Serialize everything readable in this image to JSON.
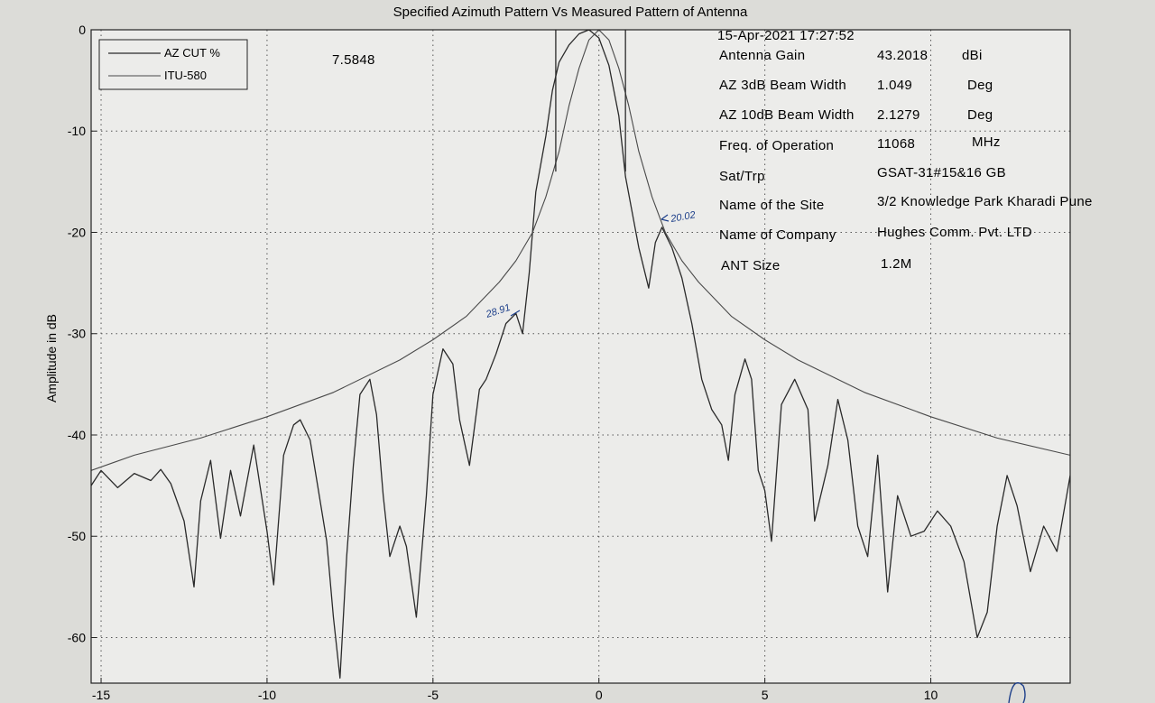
{
  "chart_data": {
    "type": "line",
    "title": "Specified  Azimuth Pattern  Vs Measured Pattern of  Antenna",
    "xlabel": "",
    "ylabel": "Amplitude in dB",
    "xlim": [
      -15.3,
      14.2
    ],
    "ylim": [
      -64.5,
      0
    ],
    "grid": true,
    "legend_position": "top-left",
    "x_ticks": [
      -15,
      -10,
      -5,
      0,
      5,
      10
    ],
    "y_ticks": [
      0,
      -10,
      -20,
      -30,
      -40,
      -50,
      -60
    ],
    "x_tick_labels": [
      "-15",
      "-10",
      "-5",
      "0",
      "5",
      "10"
    ],
    "y_tick_labels": [
      "0",
      "-10",
      "-20",
      "-30",
      "-40",
      "-50",
      "-60"
    ],
    "series": [
      {
        "name": "AZ CUT %",
        "color": "#2a2a2a",
        "x": [
          -15.3,
          -15.0,
          -14.5,
          -14.0,
          -13.5,
          -13.2,
          -12.9,
          -12.5,
          -12.2,
          -12.0,
          -11.7,
          -11.4,
          -11.1,
          -10.8,
          -10.4,
          -10.0,
          -9.8,
          -9.5,
          -9.2,
          -9.0,
          -8.7,
          -8.5,
          -8.2,
          -8.0,
          -7.8,
          -7.6,
          -7.4,
          -7.2,
          -6.9,
          -6.7,
          -6.5,
          -6.3,
          -6.0,
          -5.8,
          -5.5,
          -5.2,
          -5.0,
          -4.7,
          -4.4,
          -4.2,
          -3.9,
          -3.6,
          -3.4,
          -3.1,
          -2.8,
          -2.5,
          -2.3,
          -2.1,
          -1.9,
          -1.6,
          -1.4,
          -1.2,
          -0.9,
          -0.6,
          -0.3,
          0.0,
          0.3,
          0.6,
          0.8,
          1.2,
          1.5,
          1.7,
          1.9,
          2.2,
          2.5,
          2.8,
          3.1,
          3.4,
          3.7,
          3.9,
          4.1,
          4.4,
          4.6,
          4.8,
          5.0,
          5.2,
          5.5,
          5.9,
          6.3,
          6.5,
          6.9,
          7.2,
          7.5,
          7.8,
          8.1,
          8.4,
          8.7,
          9.0,
          9.4,
          9.8,
          10.2,
          10.6,
          11.0,
          11.4,
          11.7,
          12.0,
          12.3,
          12.6,
          13.0,
          13.4,
          13.8,
          14.2
        ],
        "y": [
          -45.0,
          -43.5,
          -45.2,
          -43.8,
          -44.5,
          -43.4,
          -44.8,
          -48.5,
          -55.0,
          -46.5,
          -42.5,
          -50.2,
          -43.5,
          -48.0,
          -41.0,
          -49.5,
          -54.8,
          -42.0,
          -39.0,
          -38.5,
          -40.5,
          -44.5,
          -50.5,
          -58.0,
          -64.0,
          -52.0,
          -43.0,
          -36.0,
          -34.5,
          -38.0,
          -46.0,
          -52.0,
          -49.0,
          -51.0,
          -58.0,
          -46.0,
          -36.0,
          -31.5,
          -33.0,
          -38.5,
          -43.0,
          -35.5,
          -34.5,
          -32.0,
          -29.0,
          -28.0,
          -30.0,
          -24.0,
          -16.0,
          -10.5,
          -6.0,
          -3.2,
          -1.5,
          -0.4,
          0.0,
          -0.8,
          -3.5,
          -8.5,
          -14.5,
          -21.5,
          -25.5,
          -21.0,
          -19.5,
          -21.5,
          -24.5,
          -29.0,
          -34.5,
          -37.5,
          -39.0,
          -42.5,
          -36.0,
          -32.5,
          -34.5,
          -43.5,
          -45.5,
          -50.5,
          -37.0,
          -34.5,
          -37.5,
          -48.5,
          -43.0,
          -36.5,
          -40.5,
          -49.0,
          -52.0,
          -42.0,
          -55.5,
          -46.0,
          -50.0,
          -49.5,
          -47.5,
          -49.0,
          -52.5,
          -60.0,
          -57.5,
          -49.0,
          -44.0,
          -47.0,
          -53.5,
          -49.0,
          -51.5,
          -44.0
        ]
      },
      {
        "name": "ITU-580",
        "color": "#4a4a4a",
        "x": [
          -15.3,
          -14.0,
          -12.0,
          -10.0,
          -8.0,
          -6.0,
          -5.0,
          -4.0,
          -3.0,
          -2.5,
          -2.0,
          -1.6,
          -1.2,
          -0.9,
          -0.6,
          -0.3,
          0.0,
          0.3,
          0.6,
          0.9,
          1.2,
          1.6,
          2.0,
          2.5,
          3.0,
          4.0,
          5.0,
          6.0,
          8.0,
          10.0,
          12.0,
          14.2
        ],
        "y": [
          -43.5,
          -42.0,
          -40.3,
          -38.2,
          -35.8,
          -32.6,
          -30.6,
          -28.3,
          -24.9,
          -22.8,
          -20.0,
          -16.5,
          -12.0,
          -7.5,
          -3.8,
          -1.0,
          0.0,
          -1.0,
          -3.8,
          -7.5,
          -12.0,
          -16.5,
          -20.0,
          -22.8,
          -24.9,
          -28.3,
          -30.6,
          -32.6,
          -35.8,
          -38.2,
          -40.3,
          -42.0
        ]
      }
    ]
  },
  "legend": {
    "items": [
      "AZ CUT %",
      "ITU-580"
    ]
  },
  "value_readout": "7.5848",
  "info_panel": {
    "timestamp": "15-Apr-2021 17:27:52",
    "rows": [
      {
        "label": "Antenna Gain",
        "value": "43.2018",
        "unit": "dBi"
      },
      {
        "label": "AZ 3dB Beam Width",
        "value": "1.049",
        "unit": "Deg"
      },
      {
        "label": "AZ 10dB Beam Width",
        "value": "2.1279",
        "unit": "Deg"
      },
      {
        "label": "Freq. of Operation",
        "value": "11068",
        "unit": "MHz"
      },
      {
        "label": "Sat/Trp",
        "value": "GSAT-31#15&16 GB",
        "unit": ""
      },
      {
        "label": "Name of the Site",
        "value": "3/2 Knowledge Park Kharadi Pune",
        "unit": ""
      },
      {
        "label": "Name of Company",
        "value": "Hughes Comm. Pvt. LTD",
        "unit": ""
      },
      {
        "label": "ANT Size",
        "value": "1.2M",
        "unit": ""
      }
    ]
  },
  "annotations": [
    {
      "text": "28.91",
      "x": -2.8,
      "y": -28.0
    },
    {
      "text": "20.02",
      "x": 2.3,
      "y": -18.5
    }
  ]
}
